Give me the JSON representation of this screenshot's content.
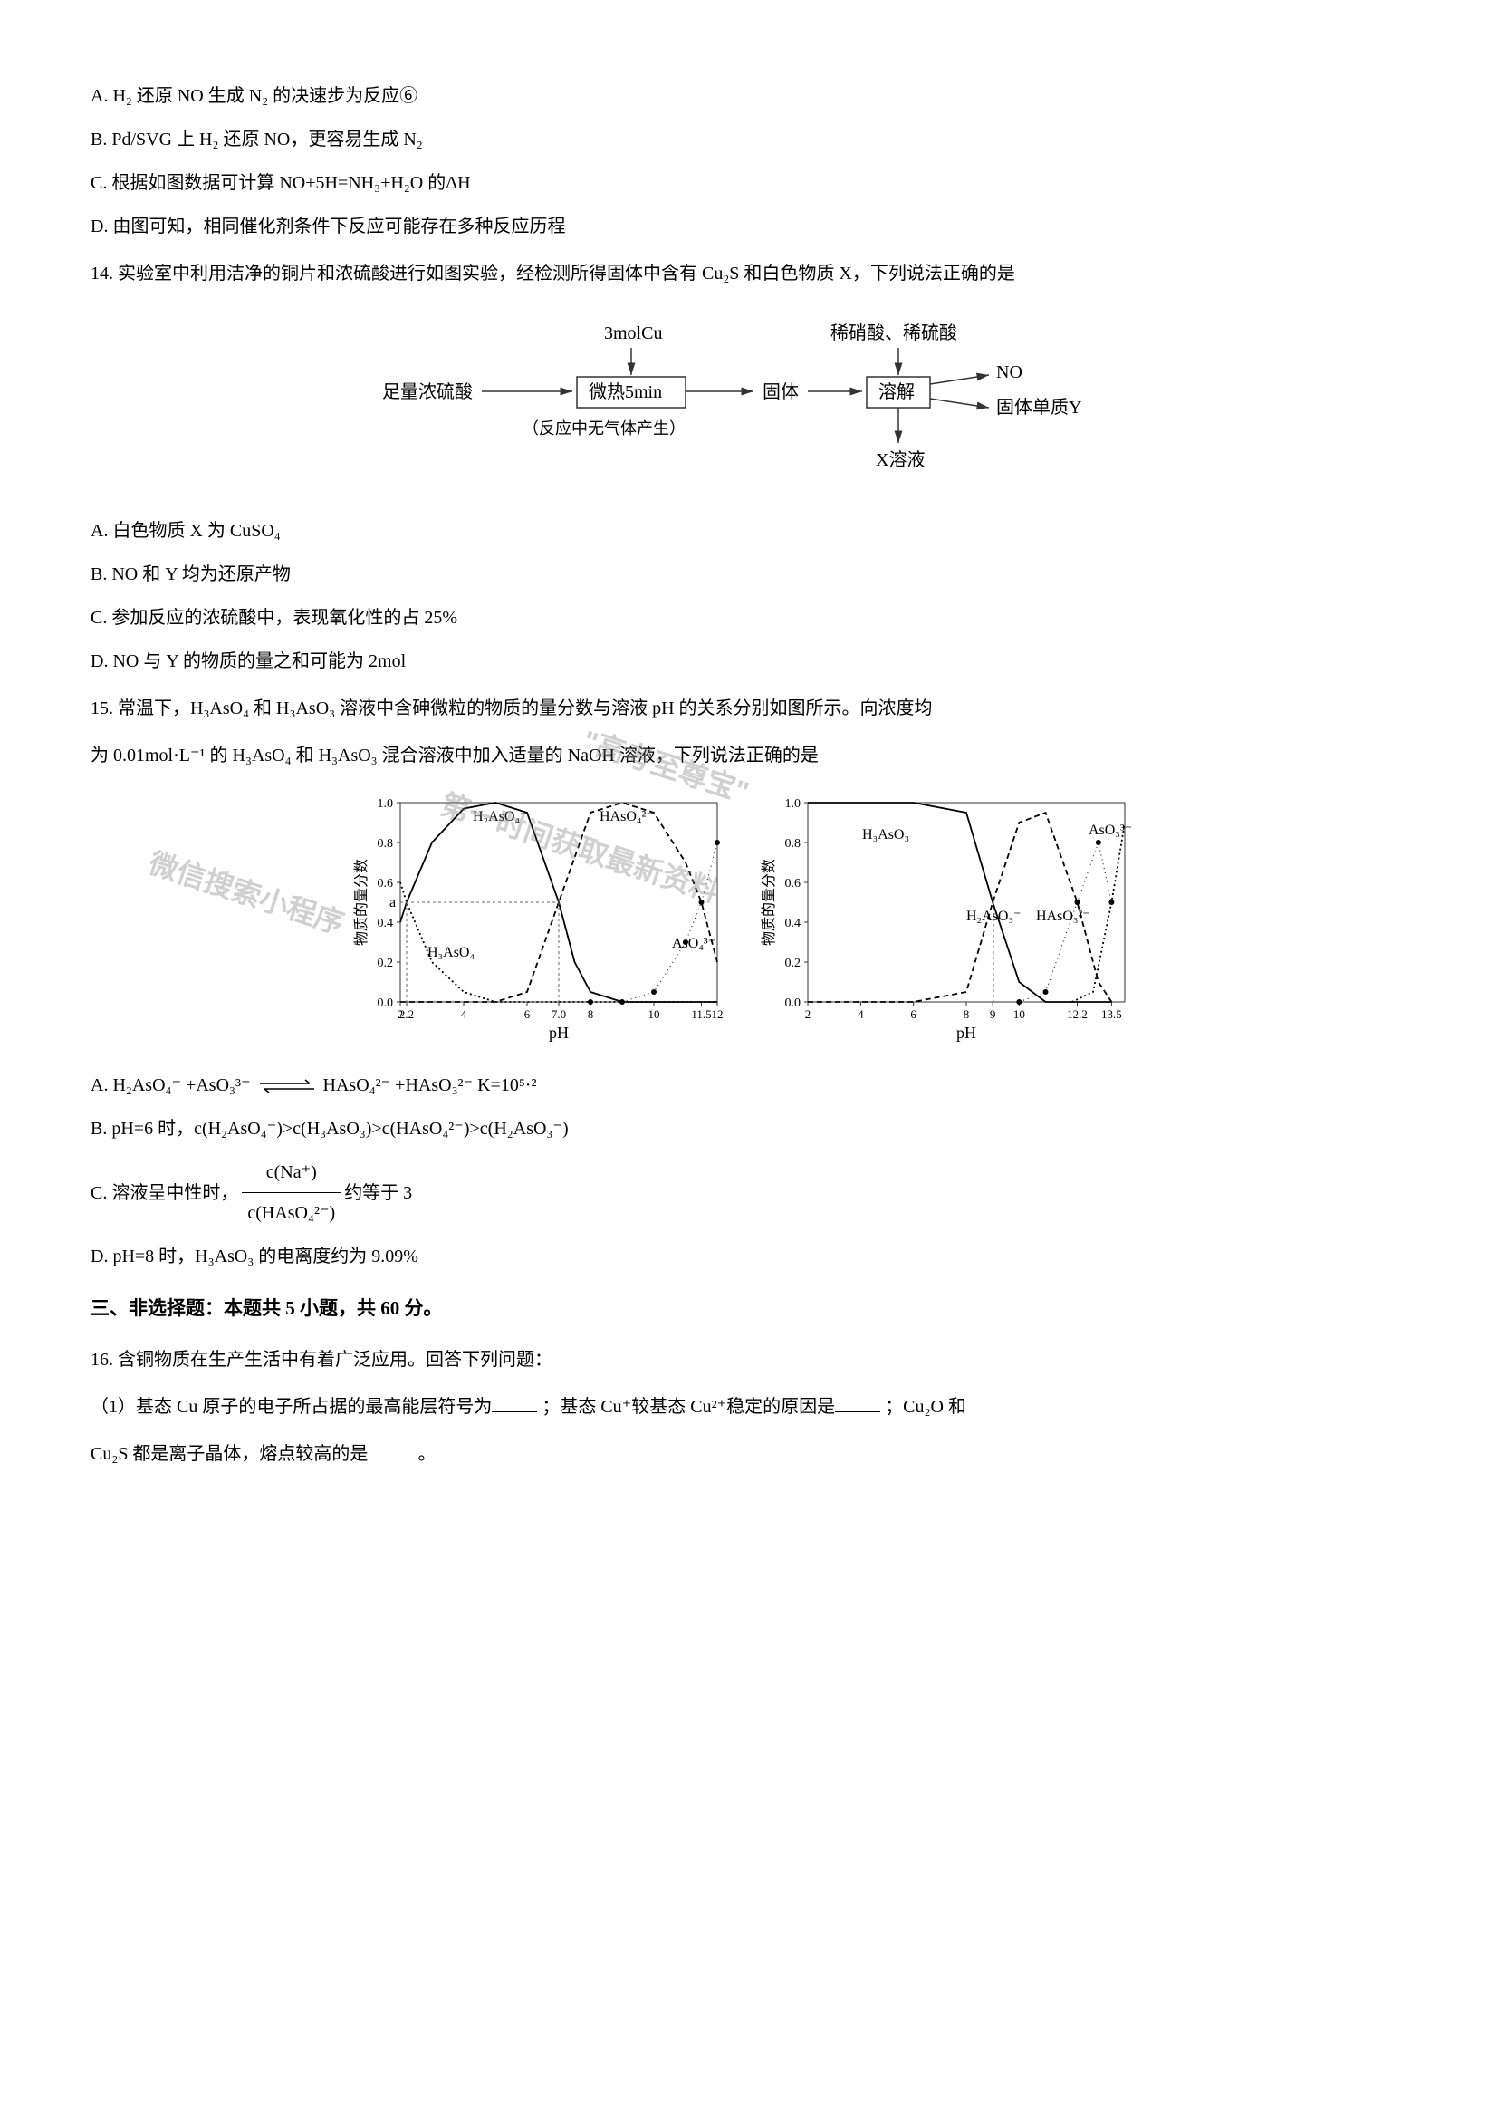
{
  "q13": {
    "options": {
      "A": "A.  H₂ 还原 NO 生成 N₂ 的决速步为反应⑥",
      "B": "B.  Pd/SVG 上 H₂ 还原 NO，更容易生成 N₂",
      "C": "C.  根据如图数据可计算 NO+5H=NH₃+H₂O 的ΔH",
      "D": "D.  由图可知，相同催化剂条件下反应可能存在多种反应历程"
    }
  },
  "q14": {
    "stem": "14. 实验室中利用洁净的铜片和浓硫酸进行如图实验，经检测所得固体中含有 Cu₂S 和白色物质 X，下列说法正确的是",
    "diagram": {
      "labels": {
        "cu": "3molCu",
        "acid_in": "足量浓硫酸",
        "heat_box": "微热5min",
        "note": "（反应中无气体产生）",
        "solid": "固体",
        "dilute": "稀硝酸、稀硫酸",
        "dissolve_box": "溶解",
        "no": "NO",
        "y": "固体单质Y",
        "x_sol": "X溶液"
      },
      "colors": {
        "box_border": "#333333",
        "arrow": "#333333",
        "text": "#000000"
      }
    },
    "options": {
      "A": "A.  白色物质 X 为 CuSO₄",
      "B": "B.  NO 和 Y 均为还原产物",
      "C": "C.  参加反应的浓硫酸中，表现氧化性的占 25%",
      "D": "D.  NO 与 Y 的物质的量之和可能为 2mol"
    }
  },
  "q15": {
    "stem_l1": "15. 常温下，H₃AsO₄ 和 H₃AsO₃ 溶液中含砷微粒的物质的量分数与溶液 pH 的关系分别如图所示。向浓度均",
    "stem_l2": "为 0.01mol·L⁻¹ 的 H₃AsO₄ 和 H₃AsO₃ 混合溶液中加入适量的 NaOH 溶液，下列说法正确的是",
    "chart_left": {
      "type": "line",
      "xlabel": "pH",
      "ylabel": "物质的量分数",
      "xlim": [
        2,
        12
      ],
      "ylim": [
        0,
        1.0
      ],
      "xticks": [
        "2",
        "2.2",
        "4",
        "6",
        "7.0",
        "8",
        "10",
        "11.5",
        "12"
      ],
      "yticks": [
        "0.0",
        "0.2",
        "0.4",
        "0.6",
        "0.8",
        "1.0"
      ],
      "a_label": "a",
      "species": [
        "H₃AsO₄",
        "H₂AsO₄⁻",
        "HAsO₄²⁻",
        "AsO₄³⁻"
      ],
      "style": {
        "background": "#ffffff",
        "grid": "#888888",
        "font_size": 14
      },
      "series": {
        "H3AsO4": {
          "style": "dotted",
          "color": "#000000",
          "points": [
            [
              2,
              0.6
            ],
            [
              2.2,
              0.5
            ],
            [
              3,
              0.2
            ],
            [
              4,
              0.05
            ],
            [
              5,
              0.0
            ],
            [
              6,
              0.0
            ],
            [
              7,
              0.0
            ],
            [
              8,
              0.0
            ],
            [
              10,
              0.0
            ],
            [
              12,
              0.0
            ]
          ]
        },
        "H2AsO4m": {
          "style": "solid",
          "color": "#000000",
          "points": [
            [
              2,
              0.4
            ],
            [
              2.2,
              0.5
            ],
            [
              3,
              0.8
            ],
            [
              4,
              0.97
            ],
            [
              5,
              1.0
            ],
            [
              6,
              0.95
            ],
            [
              7,
              0.5
            ],
            [
              7.5,
              0.2
            ],
            [
              8,
              0.05
            ],
            [
              9,
              0.0
            ],
            [
              10,
              0.0
            ],
            [
              12,
              0.0
            ]
          ]
        },
        "HAsO42m": {
          "style": "dashed",
          "color": "#000000",
          "points": [
            [
              2,
              0.0
            ],
            [
              4,
              0.0
            ],
            [
              5,
              0.0
            ],
            [
              6,
              0.05
            ],
            [
              7,
              0.5
            ],
            [
              8,
              0.95
            ],
            [
              9,
              1.0
            ],
            [
              10,
              0.95
            ],
            [
              11,
              0.7
            ],
            [
              11.5,
              0.5
            ],
            [
              12,
              0.2
            ]
          ]
        },
        "AsO43m": {
          "style": "dot-marker",
          "color": "#000000",
          "points": [
            [
              8,
              0.0
            ],
            [
              9,
              0.0
            ],
            [
              10,
              0.05
            ],
            [
              11,
              0.3
            ],
            [
              11.5,
              0.5
            ],
            [
              12,
              0.8
            ]
          ]
        }
      }
    },
    "chart_right": {
      "type": "line",
      "xlabel": "pH",
      "ylabel": "物质的量分数",
      "xlim": [
        2,
        14
      ],
      "ylim": [
        0,
        1.0
      ],
      "xticks": [
        "2",
        "4",
        "6",
        "8",
        "9",
        "10",
        "12.2",
        "13.5"
      ],
      "yticks": [
        "0.0",
        "0.2",
        "0.4",
        "0.6",
        "0.8",
        "1.0"
      ],
      "species": [
        "H₃AsO₃",
        "H₂AsO₃⁻",
        "HAsO₃²⁻",
        "AsO₃³⁻"
      ],
      "style": {
        "background": "#ffffff",
        "grid": "#888888",
        "font_size": 14
      },
      "series": {
        "H3AsO3": {
          "style": "solid",
          "color": "#000000",
          "points": [
            [
              2,
              1.0
            ],
            [
              4,
              1.0
            ],
            [
              6,
              1.0
            ],
            [
              8,
              0.95
            ],
            [
              9,
              0.5
            ],
            [
              10,
              0.1
            ],
            [
              11,
              0.0
            ],
            [
              13.5,
              0.0
            ]
          ]
        },
        "H2AsO3m": {
          "style": "dashed",
          "color": "#000000",
          "points": [
            [
              2,
              0.0
            ],
            [
              6,
              0.0
            ],
            [
              8,
              0.05
            ],
            [
              9,
              0.5
            ],
            [
              10,
              0.9
            ],
            [
              11,
              0.95
            ],
            [
              12.2,
              0.5
            ],
            [
              13,
              0.1
            ],
            [
              13.5,
              0.0
            ]
          ]
        },
        "HAsO32m": {
          "style": "dot-marker",
          "color": "#000000",
          "points": [
            [
              10,
              0.0
            ],
            [
              11,
              0.05
            ],
            [
              12.2,
              0.5
            ],
            [
              13,
              0.8
            ],
            [
              13.5,
              0.5
            ]
          ]
        },
        "AsO33m": {
          "style": "dotted",
          "color": "#000000",
          "points": [
            [
              12,
              0.0
            ],
            [
              12.8,
              0.05
            ],
            [
              13.5,
              0.5
            ],
            [
              14,
              0.9
            ]
          ]
        }
      }
    },
    "options": {
      "A_pre": "A. H₂AsO₄⁻ +AsO₃³⁻ ",
      "A_post": " HAsO₄²⁻ +HAsO₃²⁻        K=10⁵·²",
      "B": "B. pH=6 时，c(H₂AsO₄⁻)>c(H₃AsO₃)>c(HAsO₄²⁻)>c(H₂AsO₃⁻)",
      "C_pre": "C. 溶液呈中性时，",
      "C_num": "c(Na⁺)",
      "C_den": "c(HAsO₄²⁻)",
      "C_post": " 约等于 3",
      "D": "D. pH=8 时，H₃AsO₃ 的电离度约为 9.09%"
    },
    "watermarks": [
      "微信搜索小程序",
      "\"高考至尊宝\"",
      "第一时间获取最新资料"
    ]
  },
  "section3": {
    "title": "三、非选择题：本题共 5 小题，共 60 分。"
  },
  "q16": {
    "stem": "16. 含铜物质在生产生活中有着广泛应用。回答下列问题：",
    "part1_a": "（1）基态 Cu 原子的电子所占据的最高能层符号为",
    "part1_b": "；基态 Cu⁺较基态 Cu²⁺稳定的原因是",
    "part1_c": "；Cu₂O 和",
    "part1_d": "Cu₂S 都是离子晶体，熔点较高的是",
    "part1_e": "。"
  }
}
